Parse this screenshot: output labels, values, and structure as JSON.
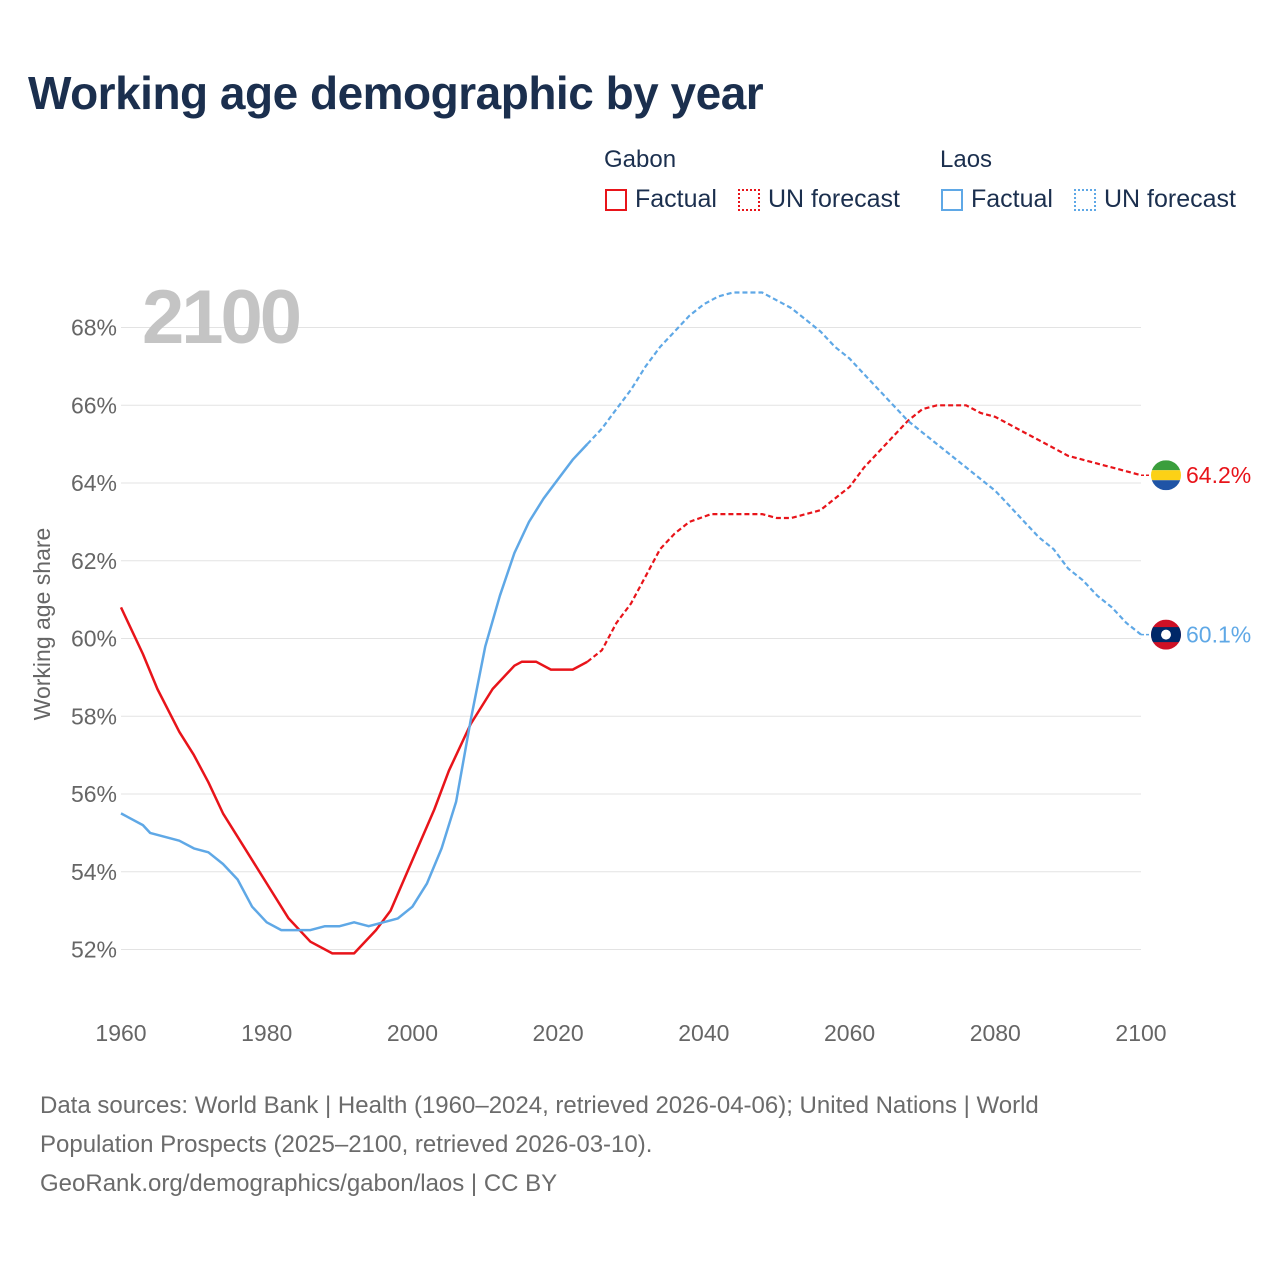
{
  "title": "Working age demographic by year",
  "legend": {
    "groups": [
      {
        "name": "Gabon",
        "factual_label": "Factual",
        "forecast_label": "UN forecast",
        "color": "#e8141a"
      },
      {
        "name": "Laos",
        "factual_label": "Factual",
        "forecast_label": "UN forecast",
        "color": "#5fa8e6"
      }
    ]
  },
  "year_watermark": "2100",
  "footer": {
    "line1": "Data sources: World Bank | Health (1960–2024, retrieved 2026-04-06); United Nations | World",
    "line2": "Population Prospects (2025–2100, retrieved 2026-03-10).",
    "line3": "GeoRank.org/demographics/gabon/laos | CC BY"
  },
  "chart_data": {
    "type": "line",
    "title": "Working age demographic by year",
    "xlabel": "",
    "ylabel": "Working age share",
    "xlim": [
      1960,
      2100
    ],
    "ylim": [
      51,
      69
    ],
    "x_ticks": [
      1960,
      1980,
      2000,
      2020,
      2040,
      2060,
      2080,
      2100
    ],
    "x_tick_labels": [
      "1960",
      "1980",
      "2000",
      "2020",
      "2040",
      "2060",
      "2080",
      "2100"
    ],
    "y_ticks": [
      52,
      54,
      56,
      58,
      60,
      62,
      64,
      66,
      68
    ],
    "y_tick_labels": [
      "52%",
      "54%",
      "56%",
      "58%",
      "60%",
      "62%",
      "64%",
      "66%",
      "68%"
    ],
    "grid": true,
    "forecast_start": 2024,
    "series": [
      {
        "name": "Gabon",
        "color": "#e8141a",
        "end_label": "64.2%",
        "flag": "gabon",
        "points": [
          [
            1960,
            60.8
          ],
          [
            1963,
            59.6
          ],
          [
            1965,
            58.7
          ],
          [
            1968,
            57.6
          ],
          [
            1970,
            57.0
          ],
          [
            1972,
            56.3
          ],
          [
            1974,
            55.5
          ],
          [
            1977,
            54.6
          ],
          [
            1980,
            53.7
          ],
          [
            1983,
            52.8
          ],
          [
            1986,
            52.2
          ],
          [
            1989,
            51.9
          ],
          [
            1992,
            51.9
          ],
          [
            1993,
            52.1
          ],
          [
            1995,
            52.5
          ],
          [
            1997,
            53.0
          ],
          [
            2000,
            54.3
          ],
          [
            2003,
            55.6
          ],
          [
            2005,
            56.6
          ],
          [
            2008,
            57.8
          ],
          [
            2011,
            58.7
          ],
          [
            2014,
            59.3
          ],
          [
            2015,
            59.4
          ],
          [
            2017,
            59.4
          ],
          [
            2019,
            59.2
          ],
          [
            2022,
            59.2
          ],
          [
            2024,
            59.4
          ],
          [
            2026,
            59.7
          ],
          [
            2028,
            60.4
          ],
          [
            2030,
            60.9
          ],
          [
            2032,
            61.6
          ],
          [
            2034,
            62.3
          ],
          [
            2036,
            62.7
          ],
          [
            2038,
            63.0
          ],
          [
            2041,
            63.2
          ],
          [
            2048,
            63.2
          ],
          [
            2050,
            63.1
          ],
          [
            2052,
            63.1
          ],
          [
            2054,
            63.2
          ],
          [
            2056,
            63.3
          ],
          [
            2058,
            63.6
          ],
          [
            2060,
            63.9
          ],
          [
            2062,
            64.4
          ],
          [
            2064,
            64.8
          ],
          [
            2066,
            65.2
          ],
          [
            2068,
            65.6
          ],
          [
            2070,
            65.9
          ],
          [
            2072,
            66.0
          ],
          [
            2076,
            66.0
          ],
          [
            2078,
            65.8
          ],
          [
            2080,
            65.7
          ],
          [
            2082,
            65.5
          ],
          [
            2084,
            65.3
          ],
          [
            2086,
            65.1
          ],
          [
            2088,
            64.9
          ],
          [
            2090,
            64.7
          ],
          [
            2092,
            64.6
          ],
          [
            2094,
            64.5
          ],
          [
            2096,
            64.4
          ],
          [
            2098,
            64.3
          ],
          [
            2100,
            64.2
          ]
        ]
      },
      {
        "name": "Laos",
        "color": "#5fa8e6",
        "end_label": "60.1%",
        "flag": "laos",
        "points": [
          [
            1960,
            55.5
          ],
          [
            1963,
            55.2
          ],
          [
            1964,
            55.0
          ],
          [
            1966,
            54.9
          ],
          [
            1968,
            54.8
          ],
          [
            1970,
            54.6
          ],
          [
            1972,
            54.5
          ],
          [
            1974,
            54.2
          ],
          [
            1976,
            53.8
          ],
          [
            1978,
            53.1
          ],
          [
            1980,
            52.7
          ],
          [
            1982,
            52.5
          ],
          [
            1986,
            52.5
          ],
          [
            1988,
            52.6
          ],
          [
            1990,
            52.6
          ],
          [
            1992,
            52.7
          ],
          [
            1994,
            52.6
          ],
          [
            1996,
            52.7
          ],
          [
            1998,
            52.8
          ],
          [
            2000,
            53.1
          ],
          [
            2002,
            53.7
          ],
          [
            2004,
            54.6
          ],
          [
            2006,
            55.8
          ],
          [
            2008,
            57.9
          ],
          [
            2010,
            59.8
          ],
          [
            2012,
            61.1
          ],
          [
            2014,
            62.2
          ],
          [
            2016,
            63.0
          ],
          [
            2018,
            63.6
          ],
          [
            2020,
            64.1
          ],
          [
            2022,
            64.6
          ],
          [
            2024,
            65.0
          ],
          [
            2026,
            65.4
          ],
          [
            2028,
            65.9
          ],
          [
            2030,
            66.4
          ],
          [
            2032,
            67.0
          ],
          [
            2034,
            67.5
          ],
          [
            2036,
            67.9
          ],
          [
            2038,
            68.3
          ],
          [
            2040,
            68.6
          ],
          [
            2042,
            68.8
          ],
          [
            2044,
            68.9
          ],
          [
            2048,
            68.9
          ],
          [
            2050,
            68.7
          ],
          [
            2052,
            68.5
          ],
          [
            2054,
            68.2
          ],
          [
            2056,
            67.9
          ],
          [
            2058,
            67.5
          ],
          [
            2060,
            67.2
          ],
          [
            2062,
            66.8
          ],
          [
            2064,
            66.4
          ],
          [
            2066,
            66.0
          ],
          [
            2068,
            65.6
          ],
          [
            2070,
            65.3
          ],
          [
            2072,
            65.0
          ],
          [
            2074,
            64.7
          ],
          [
            2076,
            64.4
          ],
          [
            2078,
            64.1
          ],
          [
            2080,
            63.8
          ],
          [
            2082,
            63.4
          ],
          [
            2084,
            63.0
          ],
          [
            2086,
            62.6
          ],
          [
            2088,
            62.3
          ],
          [
            2090,
            61.8
          ],
          [
            2092,
            61.5
          ],
          [
            2094,
            61.1
          ],
          [
            2096,
            60.8
          ],
          [
            2098,
            60.4
          ],
          [
            2100,
            60.1
          ]
        ]
      }
    ]
  }
}
